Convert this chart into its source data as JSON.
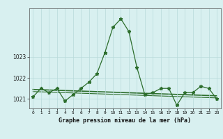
{
  "x": [
    0,
    1,
    2,
    3,
    4,
    5,
    6,
    7,
    8,
    9,
    10,
    11,
    12,
    13,
    14,
    15,
    16,
    17,
    18,
    19,
    20,
    21,
    22,
    23
  ],
  "pressure": [
    1021.1,
    1021.5,
    1021.3,
    1021.5,
    1020.9,
    1021.2,
    1021.5,
    1021.8,
    1022.2,
    1023.2,
    1024.4,
    1024.8,
    1024.2,
    1022.5,
    1021.2,
    1021.3,
    1021.5,
    1021.5,
    1020.7,
    1021.3,
    1021.3,
    1021.6,
    1021.5,
    1021.0
  ],
  "trend1_y": [
    1021.45,
    1021.15
  ],
  "trend2_y": [
    1021.35,
    1021.05
  ],
  "line_color": "#2d6e2d",
  "bg_color": "#d8f0f0",
  "grid_color": "#b8dada",
  "xlabel": "Graphe pression niveau de la mer (hPa)",
  "ylim_min": 1020.55,
  "ylim_max": 1025.3,
  "yticks": [
    1021,
    1022,
    1023
  ],
  "xticks": [
    0,
    1,
    2,
    3,
    4,
    5,
    6,
    7,
    8,
    9,
    10,
    11,
    12,
    13,
    14,
    15,
    16,
    17,
    18,
    19,
    20,
    21,
    22,
    23
  ]
}
